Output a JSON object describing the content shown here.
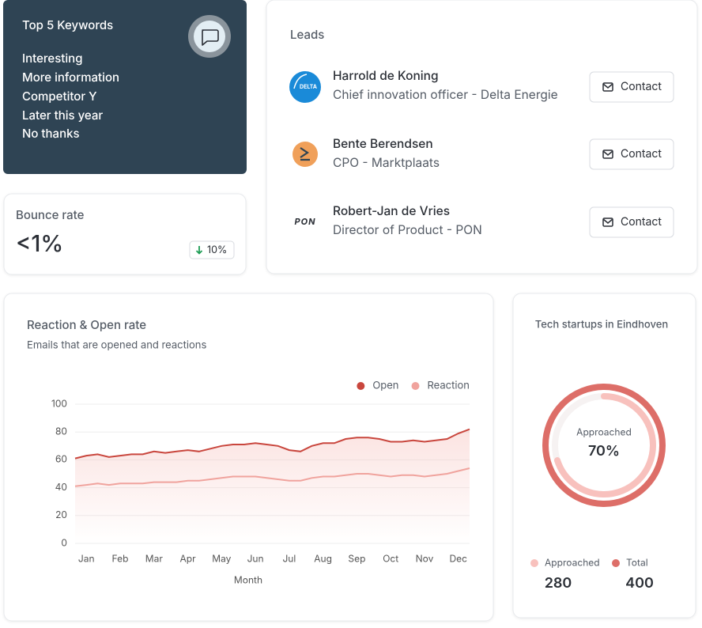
{
  "keywords": {
    "title": "Top 5 Keywords",
    "items": [
      "Interesting",
      "More information",
      "Competitor Y",
      "Later this year",
      "No thanks"
    ]
  },
  "bounce": {
    "title": "Bounce rate",
    "value": "<1%",
    "change": "10%"
  },
  "leads": {
    "title": "Leads",
    "button": "Contact",
    "items": [
      {
        "name": "Harrold de Koning",
        "role": "Chief innovation officer - Delta Energie",
        "logo_text": "DELTA"
      },
      {
        "name": "Bente Berendsen",
        "role": "CPO - Marktplaats"
      },
      {
        "name": "Robert-Jan de Vries",
        "role": "Director of Product - PON",
        "logo_text": "PON"
      }
    ]
  },
  "chart_data": [
    {
      "type": "line",
      "title": "Reaction & Open rate",
      "subtitle": "Emails that are opened and reactions",
      "x_label": "Month",
      "categories": [
        null,
        "Jan",
        null,
        null,
        "Feb",
        null,
        null,
        "Mar",
        null,
        null,
        "Apr",
        null,
        null,
        "May",
        null,
        null,
        "Jun",
        null,
        null,
        "Jul",
        null,
        null,
        "Aug",
        null,
        null,
        "Sep",
        null,
        null,
        "Oct",
        null,
        null,
        "Nov",
        null,
        null,
        "Dec",
        null
      ],
      "series": [
        {
          "name": "Open",
          "color": "#c9463d",
          "values": [
            61,
            63,
            64,
            62,
            63,
            64,
            64,
            66,
            65,
            66,
            67,
            66,
            68,
            70,
            71,
            71,
            72,
            71,
            70,
            67,
            66,
            70,
            72,
            72,
            75,
            76,
            76,
            75,
            73,
            73,
            74,
            73,
            74,
            75,
            79,
            82
          ]
        },
        {
          "name": "Reaction",
          "color": "#f0a39d",
          "values": [
            41,
            42,
            43,
            42,
            43,
            43,
            43,
            44,
            44,
            44,
            45,
            45,
            46,
            47,
            48,
            48,
            48,
            47,
            46,
            45,
            45,
            47,
            48,
            48,
            49,
            50,
            50,
            49,
            48,
            49,
            49,
            48,
            49,
            50,
            52,
            54
          ]
        }
      ],
      "ylim": [
        0,
        100
      ],
      "yticks": [
        0,
        20,
        40,
        60,
        80,
        100
      ],
      "grid": true,
      "legend": "top-right"
    },
    {
      "type": "donut",
      "title": "Tech startups in Eindhoven",
      "center_label": "Approached",
      "center_value": 70,
      "center_value_label": "70%",
      "series": [
        {
          "name": "Approached",
          "color": "#f8c1bd",
          "value": 280
        },
        {
          "name": "Total",
          "color": "#dd6e68",
          "value": 400
        }
      ]
    }
  ]
}
